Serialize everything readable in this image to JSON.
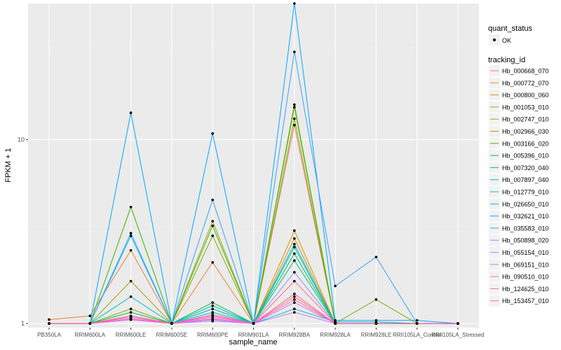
{
  "chart_data": {
    "type": "line",
    "xlabel": "sample_name",
    "ylabel": "FPKM + 1",
    "y_scale": "log10",
    "ylim": [
      0.95,
      55
    ],
    "y_ticks": [
      1,
      10
    ],
    "y_tick_labels": [
      "1",
      "10"
    ],
    "grid": true,
    "legend_position": "right",
    "categories": [
      "PB350LA",
      "RRIM600LA",
      "RRIM600LE",
      "RRIM600SE",
      "RRIM600PE",
      "RRIM901LA",
      "RRIM928BA",
      "RRIM928LA",
      "RRIM928LE",
      "RRII105LA_Control",
      "RRII105LA_Stressed"
    ],
    "quant_status_legend": {
      "title": "quant_status",
      "items": [
        "OK"
      ]
    },
    "series_legend_title": "tracking_id",
    "series": [
      {
        "name": "Hb_000668_070",
        "color": "#F8766D",
        "values": [
          1,
          1,
          1.05,
          1,
          1.05,
          1,
          12.0,
          1,
          1,
          1,
          1
        ]
      },
      {
        "name": "Hb_000772_070",
        "color": "#EA8331",
        "values": [
          1.05,
          1.1,
          2.5,
          1,
          2.15,
          1,
          1.4,
          1,
          1,
          1,
          1
        ]
      },
      {
        "name": "Hb_000800_060",
        "color": "#D89000",
        "values": [
          1,
          1,
          1.08,
          1,
          1.05,
          1,
          3.2,
          1,
          1,
          1,
          1
        ]
      },
      {
        "name": "Hb_001053_010",
        "color": "#C09B00",
        "values": [
          1,
          1,
          1.05,
          1,
          1.1,
          1,
          2.9,
          1,
          1,
          1,
          1
        ]
      },
      {
        "name": "Hb_002747_010",
        "color": "#A3A500",
        "values": [
          1,
          1,
          1.7,
          1,
          3.6,
          1,
          15.0,
          1,
          1,
          1,
          1
        ]
      },
      {
        "name": "Hb_002966_030",
        "color": "#7CAE00",
        "values": [
          1,
          1,
          1.2,
          1,
          3.0,
          1,
          13.0,
          1,
          1.35,
          1,
          1
        ]
      },
      {
        "name": "Hb_003166_020",
        "color": "#39B600",
        "values": [
          1,
          1,
          4.3,
          1,
          3.4,
          1,
          15.5,
          1,
          1,
          1,
          1
        ]
      },
      {
        "name": "Hb_005396_010",
        "color": "#00BB4E",
        "values": [
          1,
          1,
          1.15,
          1,
          1.3,
          1,
          2.4,
          1,
          1,
          1,
          1
        ]
      },
      {
        "name": "Hb_007320_040",
        "color": "#00BF7D",
        "values": [
          1,
          1,
          1.1,
          1,
          1.25,
          1,
          2.2,
          1,
          1,
          1,
          1
        ]
      },
      {
        "name": "Hb_007897_040",
        "color": "#00C1A3",
        "values": [
          1,
          1,
          1.05,
          1,
          1.2,
          1,
          2.6,
          1,
          1,
          1,
          1
        ]
      },
      {
        "name": "Hb_012779_010",
        "color": "#00BFC4",
        "values": [
          1,
          1,
          1.4,
          1,
          1.15,
          1,
          1.2,
          1.02,
          1.02,
          1,
          1
        ]
      },
      {
        "name": "Hb_026650_010",
        "color": "#00B8E7",
        "values": [
          1,
          1,
          3.1,
          1,
          1.2,
          1,
          2.7,
          1,
          1,
          1,
          1
        ]
      },
      {
        "name": "Hb_032621_010",
        "color": "#00A9FF",
        "values": [
          1,
          1,
          14.0,
          1,
          10.8,
          1,
          55.0,
          1.04,
          1.04,
          1.04,
          1
        ]
      },
      {
        "name": "Hb_035583_010",
        "color": "#35A2FF",
        "values": [
          1,
          1,
          3.0,
          1,
          4.7,
          1,
          30.0,
          1.6,
          2.3,
          1,
          1
        ]
      },
      {
        "name": "Hb_050898_020",
        "color": "#9590FF",
        "values": [
          1,
          1,
          1.1,
          1,
          1.05,
          1,
          1.9,
          1,
          1,
          1,
          1
        ]
      },
      {
        "name": "Hb_055154_010",
        "color": "#C77CFF",
        "values": [
          1,
          1,
          1.05,
          1,
          1.03,
          1,
          1.15,
          1,
          1,
          1,
          1
        ]
      },
      {
        "name": "Hb_069151_010",
        "color": "#E76BF3",
        "values": [
          1,
          1,
          1.06,
          1,
          1.08,
          1,
          1.3,
          1,
          1,
          1,
          1
        ]
      },
      {
        "name": "Hb_090510_010",
        "color": "#FA62DB",
        "values": [
          1,
          1,
          1.05,
          1,
          1.06,
          1,
          1.35,
          1,
          1,
          1,
          1
        ]
      },
      {
        "name": "Hb_124625_010",
        "color": "#FF62BC",
        "values": [
          1,
          1,
          1.08,
          1,
          1.1,
          1,
          1.45,
          1,
          1,
          1,
          1
        ]
      },
      {
        "name": "Hb_153457_010",
        "color": "#FF6C91",
        "values": [
          1,
          1,
          1.1,
          1,
          1.12,
          1,
          1.7,
          1,
          1,
          1,
          1
        ]
      }
    ]
  }
}
